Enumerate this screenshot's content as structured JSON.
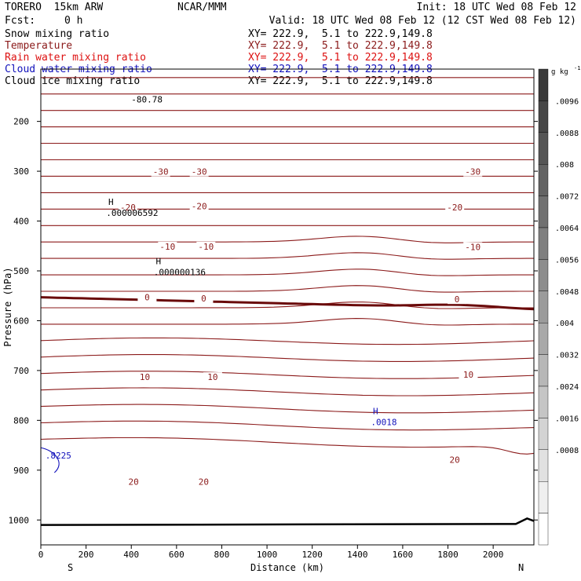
{
  "header": {
    "model": "TORERO  15km ARW",
    "org": "NCAR/MMM",
    "init": "Init: 18 UTC Wed 08 Feb 12",
    "fcst_label": "Fcst:",
    "fcst_value": "0 h",
    "valid": "Valid: 18 UTC Wed 08 Feb 12 (12 CST Wed 08 Feb 12)"
  },
  "fields": [
    {
      "name": "Snow mixing ratio",
      "xy": "XY= 222.9,  5.1 to 222.9,149.8",
      "color": "#000000"
    },
    {
      "name": "Temperature",
      "xy": "XY= 222.9,  5.1 to 222.9,149.8",
      "color": "#8b1a1a"
    },
    {
      "name": "Rain water mixing ratio",
      "xy": "XY= 222.9,  5.1 to 222.9,149.8",
      "color": "#dd1111"
    },
    {
      "name": "Cloud water mixing ratio",
      "xy": "XY= 222.9,  5.1 to 222.9,149.8",
      "color": "#1111bb"
    },
    {
      "name": "Cloud ice mixing ratio",
      "xy": "XY= 222.9,  5.1 to 222.9,149.8",
      "color": "#000000"
    }
  ],
  "chart_data": {
    "type": "line",
    "title": "",
    "xlabel": "Distance (km)",
    "ylabel": "Pressure (hPa)",
    "xlim": [
      0,
      2180
    ],
    "ylim": [
      1050,
      95
    ],
    "x_ticks": [
      0,
      200,
      400,
      600,
      800,
      1000,
      1200,
      1400,
      1600,
      1800,
      2000
    ],
    "y_ticks": [
      200,
      300,
      400,
      500,
      600,
      700,
      800,
      900,
      1000
    ],
    "end_labels": {
      "left": "S",
      "right": "N"
    },
    "temperature_isotherm_labels": [
      {
        "text": "-30",
        "x": 530,
        "p": 301
      },
      {
        "text": "-30",
        "x": 700,
        "p": 301
      },
      {
        "text": "-30",
        "x": 1910,
        "p": 301
      },
      {
        "text": "-20",
        "x": 385,
        "p": 372
      },
      {
        "text": "-20",
        "x": 700,
        "p": 370
      },
      {
        "text": "-20",
        "x": 1830,
        "p": 372
      },
      {
        "text": "-10",
        "x": 560,
        "p": 451
      },
      {
        "text": "-10",
        "x": 730,
        "p": 451
      },
      {
        "text": "-10",
        "x": 1910,
        "p": 452
      },
      {
        "text": "0",
        "x": 470,
        "p": 553
      },
      {
        "text": "0",
        "x": 720,
        "p": 555
      },
      {
        "text": "0",
        "x": 1840,
        "p": 557
      },
      {
        "text": "10",
        "x": 460,
        "p": 713
      },
      {
        "text": "10",
        "x": 760,
        "p": 713
      },
      {
        "text": "10",
        "x": 1890,
        "p": 708
      },
      {
        "text": "20",
        "x": 410,
        "p": 923
      },
      {
        "text": "20",
        "x": 720,
        "p": 923
      },
      {
        "text": "20",
        "x": 1830,
        "p": 879
      }
    ],
    "high_markers": [
      {
        "letter": "H",
        "value": ".000006592",
        "x": 310,
        "p": 368,
        "color": "#000000"
      },
      {
        "letter": "H",
        "value": ".000000136",
        "x": 520,
        "p": 487,
        "color": "#000000"
      },
      {
        "letter": "H",
        "value": ".0018",
        "x": 1480,
        "p": 788,
        "color": "#1111bb"
      }
    ],
    "partial_labels": [
      {
        "text": "-80.78",
        "x": 400,
        "p": 162,
        "color": "#000000"
      },
      {
        "text": ".8225",
        "x": 20,
        "p": 877,
        "color": "#1111bb"
      }
    ],
    "colorbar": {
      "unit": "g kg",
      "unit_exp": "-1",
      "labels": [
        ".0096",
        ".0088",
        ".008",
        ".0072",
        ".0064",
        ".0056",
        ".0048",
        ".004",
        ".0032",
        ".0024",
        ".0016",
        ".0008"
      ],
      "shades": [
        "#3a3a3a",
        "#474747",
        "#555555",
        "#636363",
        "#717171",
        "#7f7f7f",
        "#8d8d8d",
        "#9b9b9b",
        "#a9a9a9",
        "#b7b7b7",
        "#c5c5c5",
        "#d3d3d3",
        "#e1e1e1",
        "#efefef",
        "#ffffff"
      ]
    },
    "isotherm_color": "#8b1a1a",
    "freezing_line_color": "#6a0a0a",
    "terrain_color": "#000000"
  }
}
